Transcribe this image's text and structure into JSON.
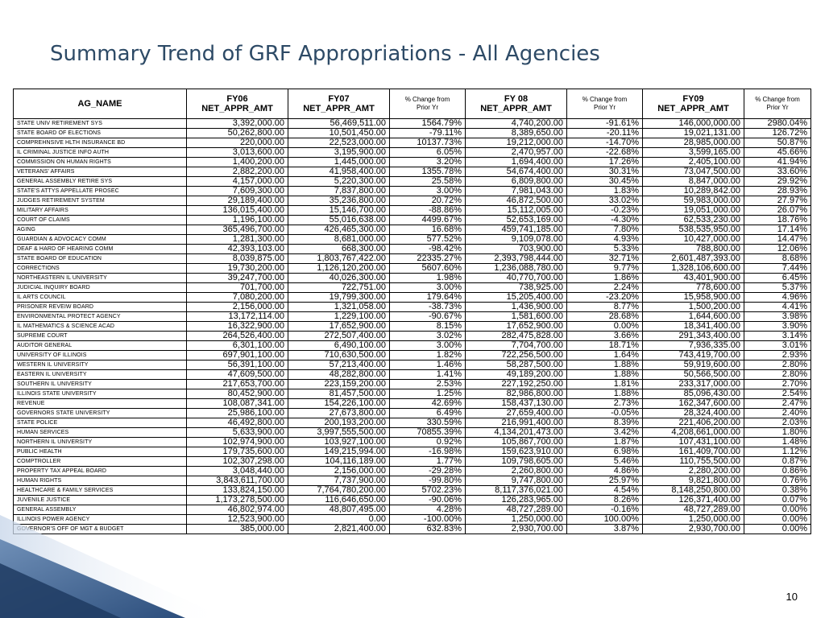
{
  "title": "Summary Trend of GRF Appropriations - All Agencies",
  "page_number": "10",
  "header": {
    "ag_name": "AG_NAME",
    "fy06": "FY06",
    "fy06_sub": "NET_APPR_AMT",
    "fy07": "FY07",
    "fy07_sub": "NET_APPR_AMT",
    "pct1": "% Change from",
    "pct1_sub": "Prior Yr",
    "fy08": "FY 08",
    "fy08_sub": "NET_APPR_AMT",
    "pct2": "% Change from",
    "pct2_sub": "Prior Yr",
    "fy09": "FY09",
    "fy09_sub": "NET_APPR_AMT",
    "pct3": "% Change from",
    "pct3_sub": "Prior Yr"
  },
  "rows": [
    [
      "STATE UNIV RETIREMENT SYS",
      "3,392,000.00",
      "56,469,511.00",
      "1564.79%",
      "4,740,200.00",
      "-91.61%",
      "146,000,000.00",
      "2980.04%"
    ],
    [
      "STATE BOARD OF ELECTIONS",
      "50,262,800.00",
      "10,501,450.00",
      "-79.11%",
      "8,389,650.00",
      "-20.11%",
      "19,021,131.00",
      "126.72%"
    ],
    [
      "COMPREHNSIVE HLTH INSURANCE BD",
      "220,000.00",
      "22,523,000.00",
      "10137.73%",
      "19,212,000.00",
      "-14.70%",
      "28,985,000.00",
      "50.87%"
    ],
    [
      "IL CRIMINAL JUSTICE INFO AUTH",
      "3,013,600.00",
      "3,195,900.00",
      "6.05%",
      "2,470,957.00",
      "-22.68%",
      "3,599,165.00",
      "45.66%"
    ],
    [
      "COMMISSION ON HUMAN RIGHTS",
      "1,400,200.00",
      "1,445,000.00",
      "3.20%",
      "1,694,400.00",
      "17.26%",
      "2,405,100.00",
      "41.94%"
    ],
    [
      "VETERANS' AFFAIRS",
      "2,882,200.00",
      "41,958,400.00",
      "1355.78%",
      "54,674,400.00",
      "30.31%",
      "73,047,500.00",
      "33.60%"
    ],
    [
      "GENERAL ASSEMBLY RETIRE SYS",
      "4,157,000.00",
      "5,220,300.00",
      "25.58%",
      "6,809,800.00",
      "30.45%",
      "8,847,000.00",
      "29.92%"
    ],
    [
      "STATE'S ATTYS APPELLATE PROSEC",
      "7,609,300.00",
      "7,837,800.00",
      "3.00%",
      "7,981,043.00",
      "1.83%",
      "10,289,842.00",
      "28.93%"
    ],
    [
      "JUDGES RETIREMENT SYSTEM",
      "29,189,400.00",
      "35,236,800.00",
      "20.72%",
      "46,872,500.00",
      "33.02%",
      "59,983,000.00",
      "27.97%"
    ],
    [
      "MILITARY AFFAIRS",
      "136,015,400.00",
      "15,146,700.00",
      "-88.86%",
      "15,112,005.00",
      "-0.23%",
      "19,051,000.00",
      "26.07%"
    ],
    [
      "COURT OF CLAIMS",
      "1,196,100.00",
      "55,016,638.00",
      "4499.67%",
      "52,653,169.00",
      "-4.30%",
      "62,533,230.00",
      "18.76%"
    ],
    [
      "AGING",
      "365,496,700.00",
      "426,465,300.00",
      "16.68%",
      "459,741,185.00",
      "7.80%",
      "538,535,950.00",
      "17.14%"
    ],
    [
      "GUARDIAN & ADVOCACY COMM",
      "1,281,300.00",
      "8,681,000.00",
      "577.52%",
      "9,109,078.00",
      "4.93%",
      "10,427,000.00",
      "14.47%"
    ],
    [
      "DEAF & HARD OF HEARING COMM",
      "42,393,103.00",
      "668,300.00",
      "-98.42%",
      "703,900.00",
      "5.33%",
      "788,800.00",
      "12.06%"
    ],
    [
      "STATE BOARD OF EDUCATION",
      "8,039,875.00",
      "1,803,767,422.00",
      "22335.27%",
      "2,393,798,444.00",
      "32.71%",
      "2,601,487,393.00",
      "8.68%"
    ],
    [
      "CORRECTIONS",
      "19,730,200.00",
      "1,126,120,200.00",
      "5607.60%",
      "1,236,088,780.00",
      "9.77%",
      "1,328,106,600.00",
      "7.44%"
    ],
    [
      "NORTHEASTERN IL UNIVERSITY",
      "39,247,700.00",
      "40,026,300.00",
      "1.98%",
      "40,770,700.00",
      "1.86%",
      "43,401,900.00",
      "6.45%"
    ],
    [
      "JUDICIAL INQUIRY BOARD",
      "701,700.00",
      "722,751.00",
      "3.00%",
      "738,925.00",
      "2.24%",
      "778,600.00",
      "5.37%"
    ],
    [
      "IL ARTS COUNCIL",
      "7,080,200.00",
      "19,799,300.00",
      "179.64%",
      "15,205,400.00",
      "-23.20%",
      "15,958,900.00",
      "4.96%"
    ],
    [
      "PRISONER REVEIW BOARD",
      "2,156,000.00",
      "1,321,058.00",
      "-38.73%",
      "1,436,900.00",
      "8.77%",
      "1,500,200.00",
      "4.41%"
    ],
    [
      "ENVIRONMENTAL PROTECT AGENCY",
      "13,172,114.00",
      "1,229,100.00",
      "-90.67%",
      "1,581,600.00",
      "28.68%",
      "1,644,600.00",
      "3.98%"
    ],
    [
      "IL MATHEMATICS & SCIENCE ACAD",
      "16,322,900.00",
      "17,652,900.00",
      "8.15%",
      "17,652,900.00",
      "0.00%",
      "18,341,400.00",
      "3.90%"
    ],
    [
      "SUPREME COURT",
      "264,526,400.00",
      "272,507,400.00",
      "3.02%",
      "282,475,828.00",
      "3.66%",
      "291,343,400.00",
      "3.14%"
    ],
    [
      "AUDITOR GENERAL",
      "6,301,100.00",
      "6,490,100.00",
      "3.00%",
      "7,704,700.00",
      "18.71%",
      "7,936,335.00",
      "3.01%"
    ],
    [
      "UNIVERSITY OF ILLINOIS",
      "697,901,100.00",
      "710,630,500.00",
      "1.82%",
      "722,256,500.00",
      "1.64%",
      "743,419,700.00",
      "2.93%"
    ],
    [
      "WESTERN IL UNIVERSITY",
      "56,391,100.00",
      "57,213,400.00",
      "1.46%",
      "58,287,500.00",
      "1.88%",
      "59,919,600.00",
      "2.80%"
    ],
    [
      "EASTERN IL UNIVERSITY",
      "47,609,500.00",
      "48,282,800.00",
      "1.41%",
      "49,189,200.00",
      "1.88%",
      "50,566,500.00",
      "2.80%"
    ],
    [
      "SOUTHERN IL UNIVERSITY",
      "217,653,700.00",
      "223,159,200.00",
      "2.53%",
      "227,192,250.00",
      "1.81%",
      "233,317,000.00",
      "2.70%"
    ],
    [
      "ILLINOIS STATE UNIVERSITY",
      "80,452,900.00",
      "81,457,500.00",
      "1.25%",
      "82,986,800.00",
      "1.88%",
      "85,096,430.00",
      "2.54%"
    ],
    [
      "REVENUE",
      "108,087,341.00",
      "154,226,100.00",
      "42.69%",
      "158,437,130.00",
      "2.73%",
      "162,347,600.00",
      "2.47%"
    ],
    [
      "GOVERNORS STATE UNIVERSITY",
      "25,986,100.00",
      "27,673,800.00",
      "6.49%",
      "27,659,400.00",
      "-0.05%",
      "28,324,400.00",
      "2.40%"
    ],
    [
      "STATE POLICE",
      "46,492,800.00",
      "200,193,200.00",
      "330.59%",
      "216,991,400.00",
      "8.39%",
      "221,406,200.00",
      "2.03%"
    ],
    [
      "HUMAN SERVICES",
      "5,633,900.00",
      "3,997,555,500.00",
      "70855.39%",
      "4,134,201,473.00",
      "3.42%",
      "4,208,661,000.00",
      "1.80%"
    ],
    [
      "NORTHERN IL UNIVERSITY",
      "102,974,900.00",
      "103,927,100.00",
      "0.92%",
      "105,867,700.00",
      "1.87%",
      "107,431,100.00",
      "1.48%"
    ],
    [
      "PUBLIC HEALTH",
      "179,735,600.00",
      "149,215,994.00",
      "-16.98%",
      "159,623,910.00",
      "6.98%",
      "161,409,700.00",
      "1.12%"
    ],
    [
      "COMPTROLLER",
      "102,307,298.00",
      "104,116,189.00",
      "1.77%",
      "109,798,605.00",
      "5.46%",
      "110,755,500.00",
      "0.87%"
    ],
    [
      "PROPERTY TAX APPEAL BOARD",
      "3,048,440.00",
      "2,156,000.00",
      "-29.28%",
      "2,260,800.00",
      "4.86%",
      "2,280,200.00",
      "0.86%"
    ],
    [
      "HUMAN RIGHTS",
      "3,843,611,700.00",
      "7,737,900.00",
      "-99.80%",
      "9,747,800.00",
      "25.97%",
      "9,821,800.00",
      "0.76%"
    ],
    [
      "HEALTHCARE & FAMILY SERVICES",
      "133,824,150.00",
      "7,764,780,200.00",
      "5702.23%",
      "8,117,376,021.00",
      "4.54%",
      "8,148,250,800.00",
      "0.38%"
    ],
    [
      "JUVENILE JUSTICE",
      "1,173,278,500.00",
      "116,646,650.00",
      "-90.06%",
      "126,283,965.00",
      "8.26%",
      "126,371,400.00",
      "0.07%"
    ],
    [
      "GENERAL ASSEMBLY",
      "46,802,974.00",
      "48,807,495.00",
      "4.28%",
      "48,727,289.00",
      "-0.16%",
      "48,727,289.00",
      "0.00%"
    ],
    [
      "ILLINOIS POWER AGENCY",
      "12,523,900.00",
      "0.00",
      "-100.00%",
      "1,250,000.00",
      "100.00%",
      "1,250,000.00",
      "0.00%"
    ],
    [
      "GOVERNOR'S OFF OF MGT & BUDGET",
      "385,000.00",
      "2,821,400.00",
      "632.83%",
      "2,930,700.00",
      "3.87%",
      "2,930,700.00",
      "0.00%"
    ]
  ]
}
